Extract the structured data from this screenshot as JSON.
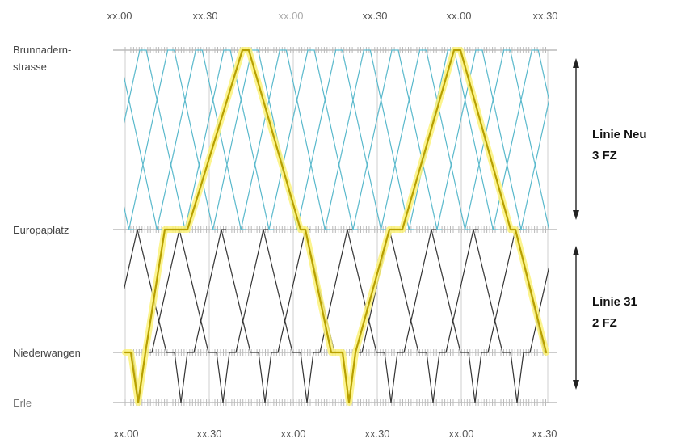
{
  "top_time_labels": [
    "xx.00",
    "xx.30",
    "xx.00",
    "xx.30",
    "xx.00",
    "xx.30"
  ],
  "bottom_time_labels": [
    "xx.00",
    "xx.30",
    "xx.00",
    "xx.30",
    "xx.00",
    "xx.30"
  ],
  "stations": [
    {
      "lines": [
        "Brunnadern-",
        "strasse"
      ]
    },
    {
      "lines": [
        "Europaplatz"
      ]
    },
    {
      "lines": [
        "Niederwangen"
      ]
    },
    {
      "lines": [
        "Erle"
      ]
    }
  ],
  "line_labels": [
    {
      "lines": [
        "Linie Neu",
        "3 FZ"
      ]
    },
    {
      "lines": [
        "Linie 31",
        "2 FZ"
      ]
    }
  ],
  "colors": {
    "linie_neu": "#5ab9cc",
    "linie_31": "#333333",
    "highlight": "#fbf27a"
  }
}
